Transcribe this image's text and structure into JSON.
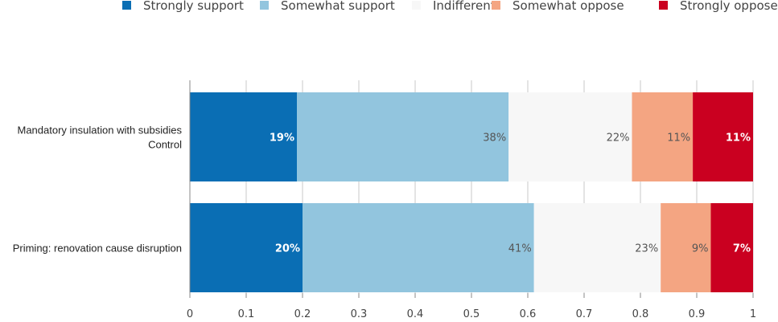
{
  "chart_data": {
    "type": "bar",
    "orientation": "horizontal",
    "stacked": true,
    "categories": [
      [
        "Mandatory insulation with subsidies",
        "Control"
      ],
      [
        "Priming: renovation cause disruption"
      ]
    ],
    "series": [
      {
        "name": "Strongly support",
        "color": "#0a6eb4",
        "values": [
          0.19,
          0.2
        ],
        "labels": [
          "19%",
          "20%"
        ],
        "label_color": "#ffffff",
        "label_bold": true
      },
      {
        "name": "Somewhat support",
        "color": "#92c5de",
        "values": [
          0.376,
          0.411
        ],
        "labels": [
          "38%",
          "41%"
        ],
        "label_color": "#555555",
        "label_bold": false
      },
      {
        "name": "Indifferent",
        "color": "#f7f7f7",
        "values": [
          0.219,
          0.225
        ],
        "labels": [
          "22%",
          "23%"
        ],
        "label_color": "#555555",
        "label_bold": false
      },
      {
        "name": "Somewhat oppose",
        "color": "#f4a582",
        "values": [
          0.108,
          0.089
        ],
        "labels": [
          "11%",
          "9%"
        ],
        "label_color": "#555555",
        "label_bold": false
      },
      {
        "name": "Strongly oppose",
        "color": "#ca0020",
        "values": [
          0.107,
          0.075
        ],
        "labels": [
          "11%",
          "7%"
        ],
        "label_color": "#ffffff",
        "label_bold": true
      }
    ],
    "xlim": [
      0,
      1
    ],
    "xticks": [
      "0",
      "0.1",
      "0.2",
      "0.3",
      "0.4",
      "0.5",
      "0.6",
      "0.7",
      "0.8",
      "0.9",
      "1"
    ],
    "grid": true,
    "legend_position": "top"
  }
}
